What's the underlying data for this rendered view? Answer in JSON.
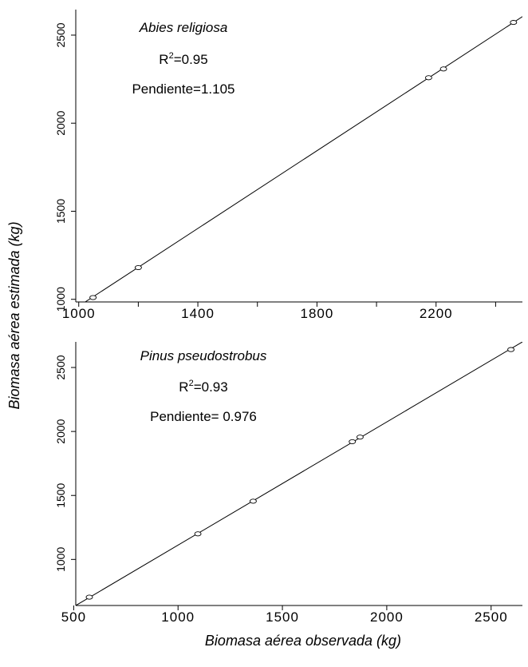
{
  "figure": {
    "ylabel": "Biomasa aérea estimada (kg)",
    "xlabel": "Biomasa aérea observada (kg)"
  },
  "chart_data": [
    {
      "type": "scatter",
      "species": "Abies religiosa",
      "r2_label": "R",
      "r2_sup": "2",
      "r2_value": "=0.95",
      "slope_label": "Pendiente=1.105",
      "xlim": [
        990,
        2490
      ],
      "ylim": [
        985,
        2645
      ],
      "xticks": [
        1000,
        1400,
        1800,
        2200
      ],
      "xtick_labels": [
        "1000",
        "1400",
        "1800",
        "2200"
      ],
      "yticks": [
        1000,
        1500,
        2000,
        2500
      ],
      "ytick_labels": [
        "1000",
        "1500",
        "2000",
        "2500"
      ],
      "extra_xticks": [
        1200,
        1600,
        2000,
        2400
      ],
      "points": [
        {
          "x": 1048,
          "y": 1010
        },
        {
          "x": 1200,
          "y": 1180
        },
        {
          "x": 2175,
          "y": 2258
        },
        {
          "x": 2225,
          "y": 2308
        },
        {
          "x": 2460,
          "y": 2572
        }
      ],
      "fit": {
        "x": [
          990,
          2490
        ],
        "y": [
          950,
          2605
        ]
      }
    },
    {
      "type": "scatter",
      "species": "Pinus pseudostrobus",
      "r2_label": "R",
      "r2_sup": "2",
      "r2_value": "=0.93",
      "slope_label": "Pendiente= 0.976",
      "xlim": [
        510,
        2650
      ],
      "ylim": [
        640,
        2700
      ],
      "xticks": [
        500,
        1000,
        1500,
        2000,
        2500
      ],
      "xtick_labels": [
        "500",
        "1000",
        "1500",
        "2000",
        "2500"
      ],
      "yticks": [
        1000,
        1500,
        2000,
        2500
      ],
      "ytick_labels": [
        "1000",
        "1500",
        "2000",
        "2500"
      ],
      "points": [
        {
          "x": 575,
          "y": 705
        },
        {
          "x": 1095,
          "y": 1200
        },
        {
          "x": 1360,
          "y": 1455
        },
        {
          "x": 1835,
          "y": 1920
        },
        {
          "x": 1872,
          "y": 1956
        },
        {
          "x": 2595,
          "y": 2640
        }
      ],
      "fit": {
        "x": [
          510,
          2650
        ],
        "y": [
          640,
          2700
        ]
      }
    }
  ]
}
